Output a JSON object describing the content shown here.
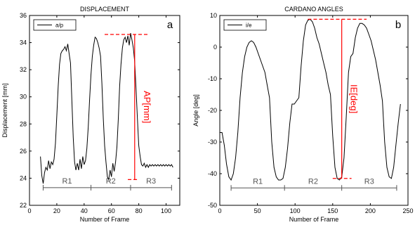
{
  "chart_data": [
    {
      "type": "line",
      "title": "DISPLACEMENT",
      "panel_label": "a",
      "xlabel": "Number of Frame",
      "ylabel": "Displacement [mm]",
      "xlim": [
        0,
        110
      ],
      "ylim": [
        22,
        36
      ],
      "xticks": [
        0,
        20,
        40,
        60,
        80,
        100
      ],
      "yticks": [
        22,
        24,
        26,
        28,
        30,
        32,
        34,
        36
      ],
      "grid": false,
      "legend": {
        "position": "top-left",
        "entries": [
          "a/p"
        ]
      },
      "series": [
        {
          "name": "a/p",
          "color": "#000000",
          "x": [
            8,
            9,
            10,
            11,
            12,
            13,
            14,
            15,
            16,
            17,
            18,
            19,
            20,
            21,
            22,
            23,
            24,
            25,
            26,
            27,
            28,
            29,
            30,
            31,
            32,
            33,
            34,
            35,
            36,
            37,
            38,
            39,
            40,
            41,
            42,
            43,
            44,
            45,
            46,
            47,
            48,
            49,
            50,
            51,
            52,
            53,
            54,
            55,
            56,
            57,
            58,
            59,
            60,
            61,
            62,
            63,
            64,
            65,
            66,
            67,
            68,
            69,
            70,
            71,
            72,
            73,
            74,
            75,
            76,
            77,
            78,
            79,
            80,
            81,
            82,
            83,
            84,
            85,
            86,
            87,
            88,
            89,
            90,
            91,
            92,
            93,
            94,
            95,
            96,
            97,
            98,
            99,
            100,
            101,
            102,
            103,
            104,
            105
          ],
          "y": [
            25.6,
            24.2,
            23.6,
            24.4,
            24.8,
            24.6,
            25.3,
            24.7,
            25.2,
            25.0,
            25.4,
            26.6,
            28.6,
            30.8,
            32.4,
            33.2,
            33.4,
            33.5,
            33.7,
            33.4,
            33.9,
            33.2,
            32.5,
            29.8,
            27.0,
            25.2,
            24.6,
            25.1,
            24.6,
            25.4,
            24.7,
            25.6,
            25.0,
            25.3,
            26.2,
            27.8,
            29.8,
            31.6,
            33.0,
            33.8,
            34.4,
            34.3,
            34.0,
            33.6,
            33.0,
            31.0,
            28.4,
            26.4,
            25.2,
            24.1,
            23.9,
            24.6,
            24.1,
            25.1,
            24.5,
            25.2,
            26.3,
            28.4,
            30.8,
            32.4,
            33.6,
            34.2,
            34.4,
            34.0,
            34.5,
            33.8,
            34.7,
            34.2,
            33.6,
            32.6,
            30.6,
            28.4,
            26.4,
            25.6,
            25.0,
            24.9,
            25.1,
            24.8,
            25.0,
            24.8,
            25.0,
            24.9,
            25.0,
            24.9,
            25.0,
            24.9,
            25.0,
            24.9,
            25.0,
            24.9,
            25.0,
            24.9,
            25.0,
            24.9,
            25.0,
            24.9,
            25.0,
            24.8
          ]
        }
      ],
      "annotation": {
        "label": "AP[mm]",
        "x": 77,
        "y_top": 34.6,
        "y_bottom": 23.9,
        "dash_top_x": [
          55,
          87
        ],
        "dash_bottom_x": [
          72,
          80
        ]
      },
      "regions": {
        "y": 23.3,
        "boundaries": [
          10,
          45,
          74,
          104
        ],
        "labels": [
          "R1",
          "R2",
          "R3"
        ]
      }
    },
    {
      "type": "line",
      "title": "CARDANO ANGLES",
      "panel_label": "b",
      "xlabel": "Number of Frame",
      "ylabel": "Angle [deg]",
      "xlim": [
        0,
        250
      ],
      "ylim": [
        -50,
        10
      ],
      "xticks": [
        0,
        50,
        100,
        150,
        200,
        250
      ],
      "yticks": [
        -50,
        -40,
        -30,
        -20,
        -10,
        0,
        10
      ],
      "grid": false,
      "legend": {
        "position": "top-left",
        "entries": [
          "i/e"
        ]
      },
      "series": [
        {
          "name": "i/e",
          "color": "#000000",
          "x": [
            0,
            3,
            6,
            9,
            12,
            15,
            18,
            21,
            24,
            27,
            30,
            33,
            36,
            39,
            42,
            45,
            48,
            51,
            54,
            57,
            60,
            63,
            66,
            69,
            72,
            75,
            78,
            81,
            84,
            87,
            90,
            93,
            96,
            99,
            102,
            105,
            108,
            111,
            114,
            117,
            120,
            123,
            126,
            129,
            132,
            135,
            138,
            141,
            144,
            147,
            150,
            153,
            156,
            159,
            162,
            165,
            168,
            171,
            174,
            177,
            180,
            183,
            186,
            189,
            192,
            195,
            198,
            201,
            204,
            207,
            210,
            213,
            216,
            219,
            222,
            225,
            228,
            231,
            234,
            237,
            240
          ],
          "y": [
            -27,
            -27,
            -31,
            -37,
            -41,
            -42,
            -40,
            -35,
            -27,
            -16,
            -8,
            -3,
            0,
            1.5,
            2,
            1.5,
            0,
            -2,
            -4,
            -6,
            -8,
            -12,
            -16,
            -30,
            -38,
            -41,
            -42,
            -42,
            -41.5,
            -38,
            -32,
            -24,
            -18,
            -18,
            -17,
            -16,
            -6,
            2,
            7,
            8.5,
            8.8,
            8,
            6,
            3,
            1,
            -2,
            -5,
            -8,
            -12,
            -15,
            -28,
            -38,
            -41.5,
            -42,
            -41,
            -35,
            -22,
            -8,
            -3,
            -2,
            3,
            6,
            7.5,
            7.5,
            7,
            6,
            4,
            2,
            -1,
            -4,
            -8,
            -12,
            -17,
            -30,
            -38,
            -41,
            -41.5,
            -38,
            -31,
            -24,
            -18
          ]
        }
      ],
      "annotation": {
        "label": "IE[deg]",
        "x": 162,
        "y_top": 8.8,
        "y_bottom": -41.5,
        "dash_top_x": [
          117,
          195
        ],
        "dash_bottom_x": [
          150,
          175
        ]
      },
      "regions": {
        "y": -44.5,
        "boundaries": [
          15,
          86,
          162,
          235
        ],
        "labels": [
          "R1",
          "R2",
          "R3"
        ]
      }
    }
  ],
  "colors": {
    "annotation": "#ff0000",
    "line": "#000000",
    "region": "#555555"
  }
}
